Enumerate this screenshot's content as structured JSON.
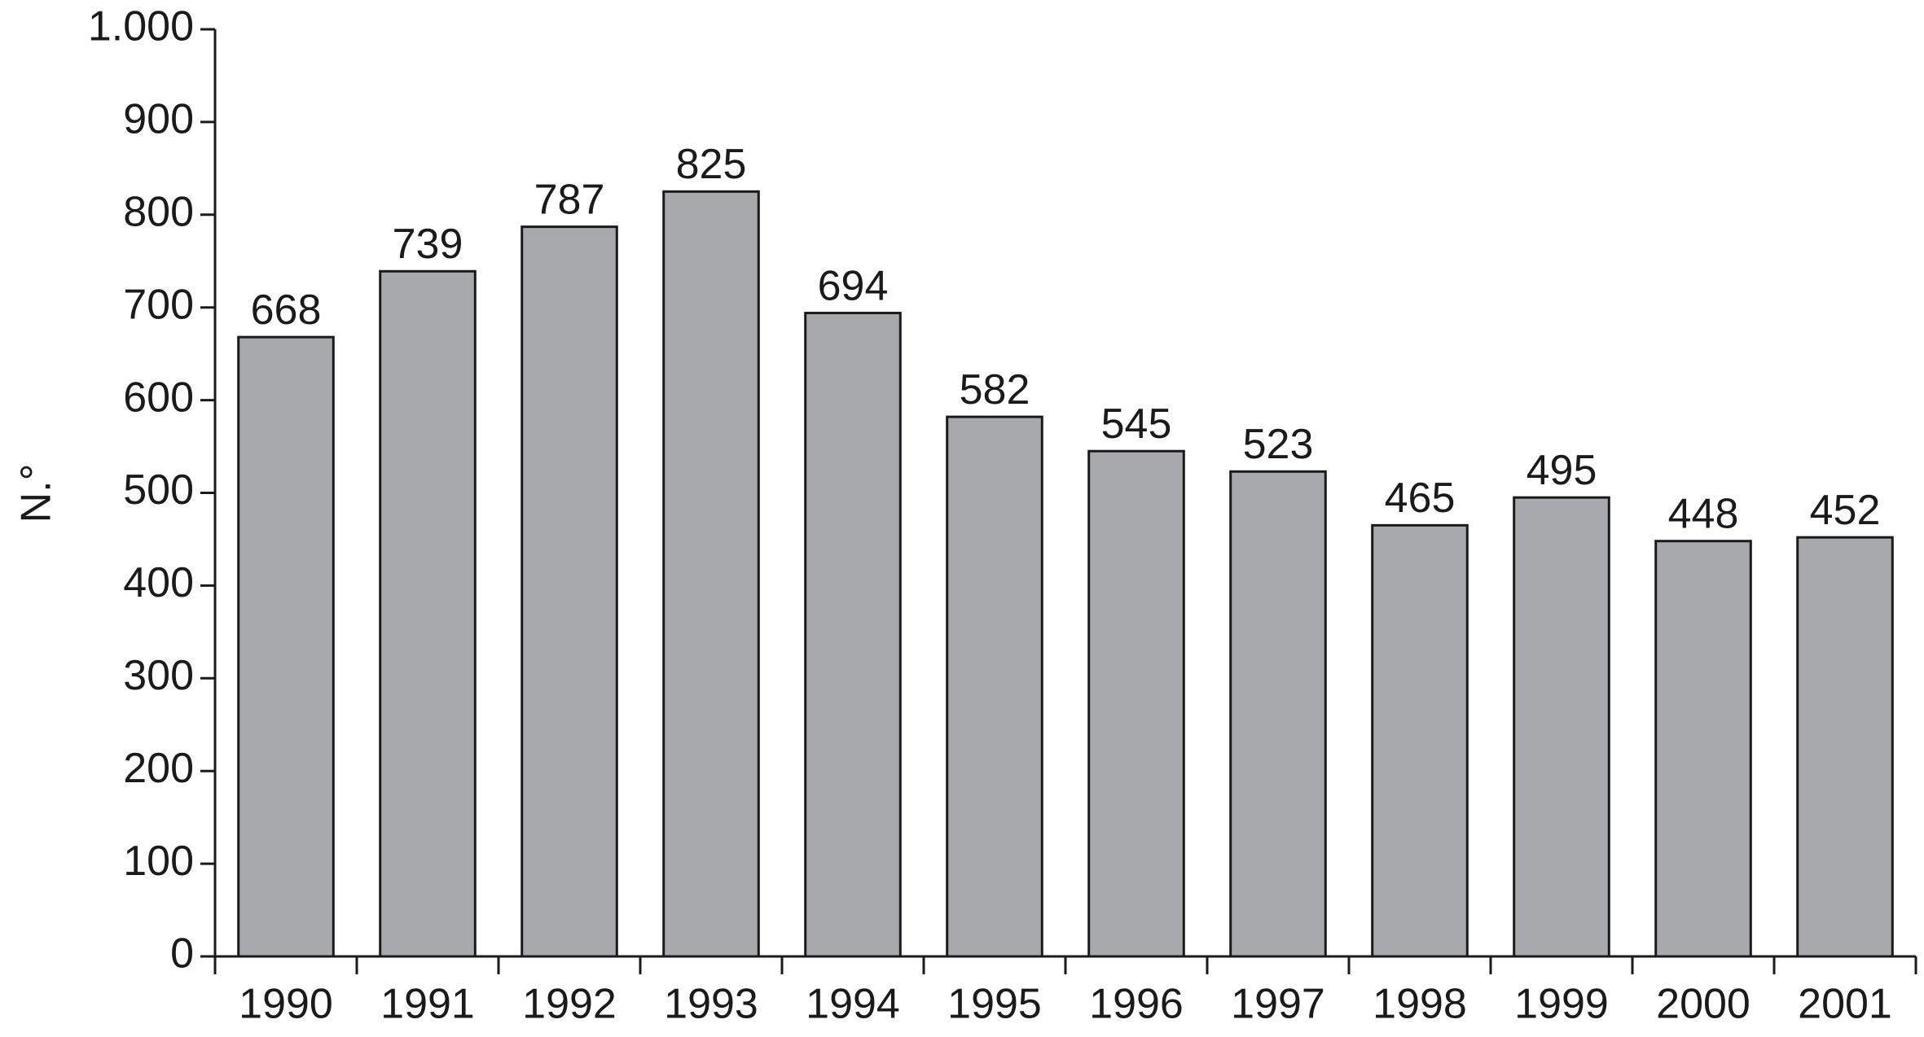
{
  "chart_data": {
    "type": "bar",
    "y_label": "N.°",
    "categories": [
      "1990",
      "1991",
      "1992",
      "1993",
      "1994",
      "1995",
      "1996",
      "1997",
      "1998",
      "1999",
      "2000",
      "2001"
    ],
    "values": [
      668,
      739,
      787,
      825,
      694,
      582,
      545,
      523,
      465,
      495,
      448,
      452
    ],
    "color": "#a7a9ac",
    "ylim": [
      0,
      1000
    ],
    "yticks": [
      0,
      100,
      200,
      300,
      400,
      500,
      600,
      700,
      800,
      900,
      {
        "value": 1000,
        "label": "1.000"
      }
    ],
    "grid": false
  }
}
